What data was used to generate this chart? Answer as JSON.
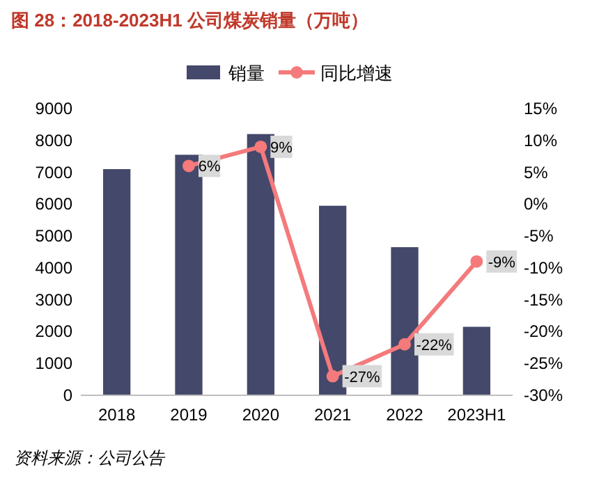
{
  "chart_data": {
    "type": "bar",
    "title": "图 28：2018-2023H1 公司煤炭销量（万吨）",
    "categories": [
      "2018",
      "2019",
      "2020",
      "2021",
      "2022",
      "2023H1"
    ],
    "series": [
      {
        "name": "销量",
        "color": "#44486a",
        "values": [
          7100,
          7550,
          8200,
          5950,
          4650,
          2150
        ]
      },
      {
        "name": "同比增速",
        "type": "line",
        "axis": "y2",
        "color": "#f47a7c",
        "marker": "circle",
        "values": [
          null,
          6,
          9,
          -27,
          -22,
          -9
        ],
        "value_labels": [
          null,
          "6%",
          "9%",
          "-27%",
          "-22%",
          "-9%"
        ]
      }
    ],
    "ylim": [
      0,
      9000
    ],
    "yticks": [
      0,
      1000,
      2000,
      3000,
      4000,
      5000,
      6000,
      7000,
      8000,
      9000
    ],
    "y2lim": [
      -30,
      15
    ],
    "y2ticks": [
      {
        "value": -30,
        "label": "-30%"
      },
      {
        "value": -25,
        "label": "-25%"
      },
      {
        "value": -20,
        "label": "-20%"
      },
      {
        "value": -15,
        "label": "-15%"
      },
      {
        "value": -10,
        "label": "-10%"
      },
      {
        "value": -5,
        "label": "-5%"
      },
      {
        "value": 0,
        "label": "0%"
      },
      {
        "value": 5,
        "label": "5%"
      },
      {
        "value": 10,
        "label": "10%"
      },
      {
        "value": 15,
        "label": "15%"
      }
    ],
    "legend": "top",
    "grid": false,
    "annotations": [
      "资料来源：公司公告"
    ]
  }
}
